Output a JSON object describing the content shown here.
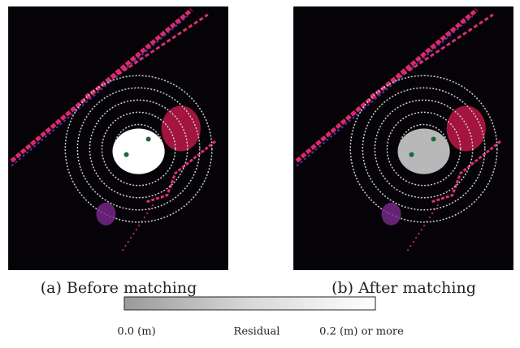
{
  "panels": [
    {
      "caption": "(a) Before matching"
    },
    {
      "caption": "(b) After matching"
    }
  ],
  "colorbar": {
    "min_label": "0.0 (m)",
    "title": "Residual",
    "max_label": "0.2 (m) or more"
  }
}
